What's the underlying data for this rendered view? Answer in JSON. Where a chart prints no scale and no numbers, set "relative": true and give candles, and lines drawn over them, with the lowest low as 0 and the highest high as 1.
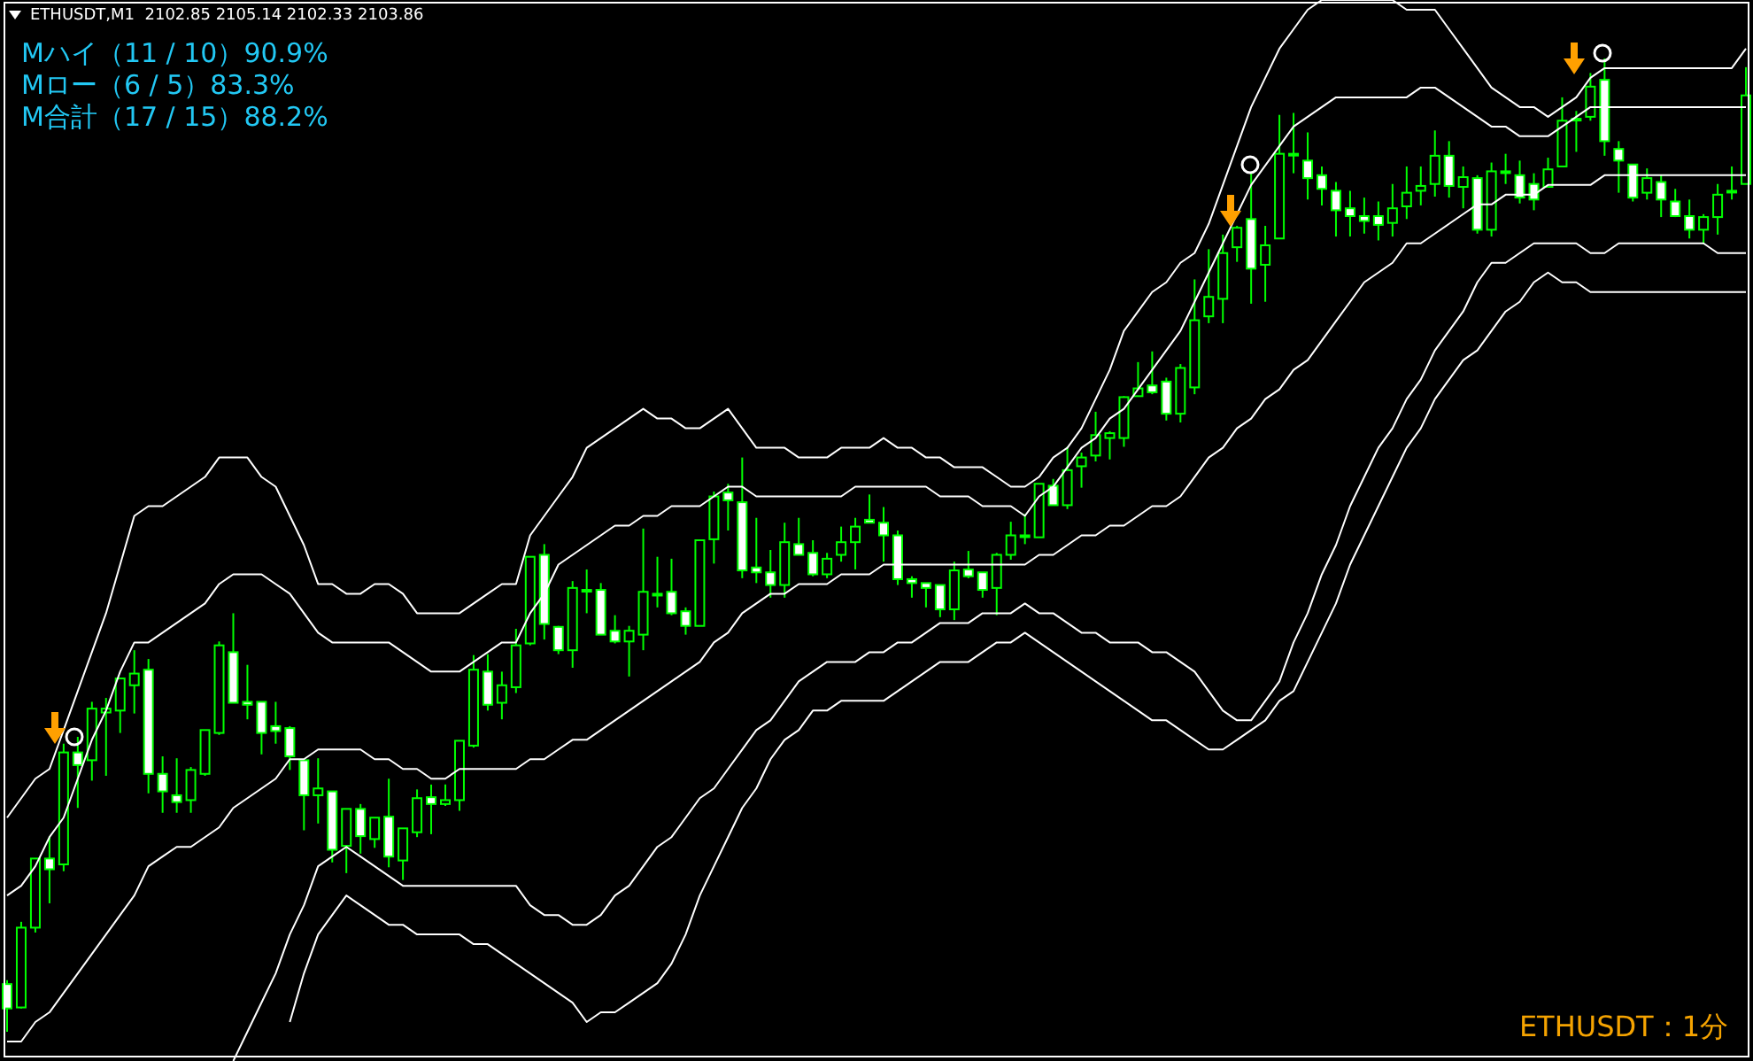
{
  "chart_data": {
    "type": "candlestick",
    "title": "ETHUSDT,M1  2102.85 2105.14 2102.33 2103.86",
    "relative": true,
    "tick_labels": false,
    "color": "#00ff00",
    "annotations": [
      "Mハイ（11 / 10）90.9%",
      "Mロー（6 / 5）83.3%",
      "M合計（17 / 15）88.2%",
      "ETHUSDT：1分"
    ],
    "categories": [
      null,
      null,
      null,
      null,
      null,
      null,
      null,
      null,
      null,
      null,
      null,
      null,
      null,
      null,
      null,
      null,
      null,
      null,
      null,
      null,
      null,
      null,
      null,
      null,
      null,
      null,
      null,
      null,
      null,
      null,
      null,
      null,
      null,
      null,
      null,
      null,
      null,
      null,
      null,
      null,
      null,
      null,
      null,
      null,
      null,
      null,
      null,
      null,
      null,
      null,
      null,
      null,
      null,
      null,
      null,
      null,
      null,
      null,
      null,
      null,
      null,
      null,
      null,
      null,
      null,
      null,
      null,
      null,
      null,
      null,
      null,
      null,
      null,
      null,
      null,
      null,
      null,
      null,
      null,
      null,
      null,
      null,
      null,
      null,
      null,
      null,
      null,
      null,
      null,
      null,
      null,
      null,
      null,
      null,
      null,
      null,
      null,
      null,
      null,
      null,
      null,
      null,
      null,
      null,
      null,
      null,
      null,
      null,
      null,
      null,
      null,
      null,
      null,
      null,
      null,
      null,
      null,
      null,
      null,
      null,
      null,
      null,
      null,
      null
    ],
    "ohlc": [
      [
        0.049,
        0.053,
        0,
        0.024
      ],
      [
        0.025,
        0.113,
        0.024,
        0.107
      ],
      [
        0.107,
        0.178,
        0.102,
        0.178
      ],
      [
        0.178,
        0.201,
        0.132,
        0.167
      ],
      [
        0.172,
        0.296,
        0.165,
        0.287
      ],
      [
        0.287,
        0.303,
        0.23,
        0.274
      ],
      [
        0.279,
        0.339,
        0.258,
        0.332
      ],
      [
        0.328,
        0.343,
        0.263,
        0.332
      ],
      [
        0.33,
        0.363,
        0.307,
        0.363
      ],
      [
        0.356,
        0.392,
        0.327,
        0.368
      ],
      [
        0.372,
        0.383,
        0.245,
        0.265
      ],
      [
        0.265,
        0.283,
        0.225,
        0.247
      ],
      [
        0.243,
        0.281,
        0.225,
        0.236
      ],
      [
        0.238,
        0.272,
        0.225,
        0.269
      ],
      [
        0.265,
        0.31,
        0.263,
        0.31
      ],
      [
        0.307,
        0.401,
        0.305,
        0.397
      ],
      [
        0.39,
        0.43,
        0.338,
        0.338
      ],
      [
        0.339,
        0.377,
        0.321,
        0.336
      ],
      [
        0.339,
        0.339,
        0.285,
        0.307
      ],
      [
        0.314,
        0.339,
        0.296,
        0.309
      ],
      [
        0.312,
        0.314,
        0.269,
        0.283
      ],
      [
        0.279,
        0.279,
        0.207,
        0.243
      ],
      [
        0.243,
        0.281,
        0.214,
        0.25
      ],
      [
        0.247,
        0.247,
        0.174,
        0.187
      ],
      [
        0.191,
        0.229,
        0.163,
        0.229
      ],
      [
        0.229,
        0.234,
        0.183,
        0.201
      ],
      [
        0.198,
        0.22,
        0.189,
        0.22
      ],
      [
        0.221,
        0.26,
        0.169,
        0.18
      ],
      [
        0.176,
        0.209,
        0.156,
        0.209
      ],
      [
        0.205,
        0.249,
        0.2,
        0.24
      ],
      [
        0.241,
        0.254,
        0.203,
        0.234
      ],
      [
        0.234,
        0.254,
        0.232,
        0.238
      ],
      [
        0.238,
        0.299,
        0.227,
        0.299
      ],
      [
        0.294,
        0.387,
        0.292,
        0.372
      ],
      [
        0.37,
        0.388,
        0.33,
        0.336
      ],
      [
        0.338,
        0.37,
        0.321,
        0.356
      ],
      [
        0.354,
        0.414,
        0.348,
        0.397
      ],
      [
        0.399,
        0.488,
        0.397,
        0.488
      ],
      [
        0.49,
        0.501,
        0.403,
        0.419
      ],
      [
        0.416,
        0.417,
        0.388,
        0.392
      ],
      [
        0.392,
        0.463,
        0.374,
        0.456
      ],
      [
        0.454,
        0.475,
        0.43,
        0.454
      ],
      [
        0.454,
        0.461,
        0.408,
        0.408
      ],
      [
        0.412,
        0.428,
        0.399,
        0.401
      ],
      [
        0.401,
        0.417,
        0.365,
        0.412
      ],
      [
        0.408,
        0.517,
        0.392,
        0.452
      ],
      [
        0.45,
        0.488,
        0.436,
        0.45
      ],
      [
        0.452,
        0.486,
        0.428,
        0.43
      ],
      [
        0.432,
        0.436,
        0.408,
        0.417
      ],
      [
        0.417,
        0.505,
        0.417,
        0.505
      ],
      [
        0.506,
        0.555,
        0.481,
        0.55
      ],
      [
        0.554,
        0.563,
        0.515,
        0.546
      ],
      [
        0.544,
        0.59,
        0.466,
        0.474
      ],
      [
        0.477,
        0.528,
        0.461,
        0.472
      ],
      [
        0.472,
        0.495,
        0.446,
        0.459
      ],
      [
        0.459,
        0.523,
        0.446,
        0.503
      ],
      [
        0.501,
        0.528,
        0.49,
        0.49
      ],
      [
        0.492,
        0.505,
        0.468,
        0.47
      ],
      [
        0.47,
        0.492,
        0.466,
        0.486
      ],
      [
        0.49,
        0.519,
        0.483,
        0.503
      ],
      [
        0.503,
        0.528,
        0.475,
        0.519
      ],
      [
        0.526,
        0.552,
        0.523,
        0.523
      ],
      [
        0.523,
        0.539,
        0.483,
        0.51
      ],
      [
        0.51,
        0.515,
        0.459,
        0.465
      ],
      [
        0.465,
        0.468,
        0.446,
        0.461
      ],
      [
        0.461,
        0.461,
        0.436,
        0.456
      ],
      [
        0.459,
        0.459,
        0.426,
        0.434
      ],
      [
        0.434,
        0.483,
        0.423,
        0.474
      ],
      [
        0.475,
        0.494,
        0.466,
        0.468
      ],
      [
        0.472,
        0.472,
        0.446,
        0.454
      ],
      [
        0.456,
        0.492,
        0.428,
        0.49
      ],
      [
        0.49,
        0.524,
        0.485,
        0.51
      ],
      [
        0.51,
        0.532,
        0.501,
        0.51
      ],
      [
        0.508,
        0.563,
        0.508,
        0.563
      ],
      [
        0.561,
        0.568,
        0.541,
        0.541
      ],
      [
        0.541,
        0.601,
        0.537,
        0.577
      ],
      [
        0.581,
        0.595,
        0.559,
        0.59
      ],
      [
        0.592,
        0.637,
        0.586,
        0.613
      ],
      [
        0.61,
        0.617,
        0.588,
        0.615
      ],
      [
        0.61,
        0.653,
        0.601,
        0.652
      ],
      [
        0.653,
        0.688,
        0.653,
        0.661
      ],
      [
        0.664,
        0.699,
        0.655,
        0.657
      ],
      [
        0.668,
        0.672,
        0.628,
        0.635
      ],
      [
        0.635,
        0.686,
        0.626,
        0.682
      ],
      [
        0.662,
        0.773,
        0.655,
        0.731
      ],
      [
        0.735,
        0.804,
        0.728,
        0.755
      ],
      [
        0.753,
        0.819,
        0.728,
        0.8
      ],
      [
        0.806,
        0.828,
        0.791,
        0.826
      ],
      [
        0.835,
        0.882,
        0.748,
        0.784
      ],
      [
        0.788,
        0.828,
        0.75,
        0.808
      ],
      [
        0.815,
        0.942,
        0.815,
        0.902
      ],
      [
        0.902,
        0.944,
        0.882,
        0.902
      ],
      [
        0.895,
        0.924,
        0.855,
        0.877
      ],
      [
        0.88,
        0.889,
        0.849,
        0.866
      ],
      [
        0.864,
        0.873,
        0.817,
        0.844
      ],
      [
        0.846,
        0.864,
        0.817,
        0.838
      ],
      [
        0.838,
        0.857,
        0.82,
        0.833
      ],
      [
        0.838,
        0.853,
        0.813,
        0.829
      ],
      [
        0.831,
        0.871,
        0.817,
        0.846
      ],
      [
        0.848,
        0.889,
        0.835,
        0.862
      ],
      [
        0.864,
        0.889,
        0.849,
        0.869
      ],
      [
        0.871,
        0.926,
        0.858,
        0.9
      ],
      [
        0.9,
        0.915,
        0.857,
        0.869
      ],
      [
        0.868,
        0.889,
        0.846,
        0.878
      ],
      [
        0.877,
        0.88,
        0.82,
        0.824
      ],
      [
        0.824,
        0.893,
        0.817,
        0.884
      ],
      [
        0.884,
        0.902,
        0.871,
        0.884
      ],
      [
        0.88,
        0.895,
        0.851,
        0.857
      ],
      [
        0.871,
        0.882,
        0.844,
        0.855
      ],
      [
        0.868,
        0.898,
        0.868,
        0.886
      ],
      [
        0.889,
        0.96,
        0.889,
        0.936
      ],
      [
        0.938,
        0.946,
        0.904,
        0.938
      ],
      [
        0.94,
        0.985,
        0.936,
        0.971
      ],
      [
        0.978,
        1,
        0.9,
        0.915
      ],
      [
        0.907,
        0.915,
        0.862,
        0.895
      ],
      [
        0.891,
        0.891,
        0.853,
        0.857
      ],
      [
        0.862,
        0.887,
        0.855,
        0.877
      ],
      [
        0.873,
        0.88,
        0.837,
        0.855
      ],
      [
        0.853,
        0.866,
        0.837,
        0.838
      ],
      [
        0.838,
        0.855,
        0.815,
        0.824
      ],
      [
        0.824,
        0.84,
        0.809,
        0.837
      ],
      [
        0.837,
        0.871,
        0.819,
        0.86
      ],
      [
        0.864,
        0.889,
        0.855,
        0.864
      ],
      [
        0.871,
        0.991,
        0.871,
        0.962
      ]
    ],
    "series": [
      {
        "type": "line",
        "color": "#ffffff",
        "values": [
          0.22,
          0.24,
          0.26,
          0.27,
          0.31,
          0.35,
          0.39,
          0.43,
          0.48,
          0.53,
          0.54,
          0.54,
          0.55,
          0.56,
          0.57,
          0.59,
          0.59,
          0.59,
          0.57,
          0.56,
          0.53,
          0.5,
          0.46,
          0.46,
          0.45,
          0.45,
          0.46,
          0.46,
          0.45,
          0.43,
          0.43,
          0.43,
          0.43,
          0.44,
          0.45,
          0.46,
          0.46,
          0.51,
          0.53,
          0.55,
          0.57,
          0.6,
          0.61,
          0.62,
          0.63,
          0.64,
          0.63,
          0.63,
          0.62,
          0.62,
          0.63,
          0.64,
          0.62,
          0.6,
          0.6,
          0.6,
          0.59,
          0.59,
          0.59,
          0.6,
          0.6,
          0.6,
          0.61,
          0.6,
          0.6,
          0.59,
          0.59,
          0.58,
          0.58,
          0.58,
          0.57,
          0.56,
          0.56,
          0.57,
          0.59,
          0.6,
          0.62,
          0.65,
          0.68,
          0.72,
          0.74,
          0.76,
          0.77,
          0.79,
          0.8,
          0.83,
          0.87,
          0.91,
          0.95,
          0.98,
          1.01,
          1.03,
          1.05,
          1.06,
          1.06,
          1.06,
          1.06,
          1.06,
          1.06,
          1.05,
          1.05,
          1.05,
          1.03,
          1.01,
          0.99,
          0.97,
          0.96,
          0.95,
          0.95,
          0.94,
          0.95,
          0.96,
          0.98,
          0.99,
          0.99,
          0.99,
          0.99,
          0.99,
          0.99,
          0.99,
          0.99,
          0.99,
          0.99,
          1.01
        ]
      },
      {
        "type": "line",
        "color": "#ffffff",
        "values": [
          0.14,
          0.15,
          0.17,
          0.2,
          0.22,
          0.26,
          0.3,
          0.33,
          0.37,
          0.4,
          0.4,
          0.41,
          0.42,
          0.43,
          0.44,
          0.46,
          0.47,
          0.47,
          0.47,
          0.46,
          0.45,
          0.43,
          0.41,
          0.4,
          0.4,
          0.4,
          0.4,
          0.4,
          0.39,
          0.38,
          0.37,
          0.37,
          0.37,
          0.38,
          0.39,
          0.4,
          0.4,
          0.43,
          0.45,
          0.48,
          0.49,
          0.5,
          0.51,
          0.52,
          0.52,
          0.53,
          0.53,
          0.54,
          0.54,
          0.54,
          0.55,
          0.56,
          0.56,
          0.55,
          0.55,
          0.55,
          0.55,
          0.55,
          0.55,
          0.55,
          0.56,
          0.56,
          0.56,
          0.56,
          0.56,
          0.56,
          0.55,
          0.55,
          0.55,
          0.54,
          0.54,
          0.54,
          0.53,
          0.55,
          0.56,
          0.58,
          0.6,
          0.61,
          0.63,
          0.64,
          0.66,
          0.68,
          0.7,
          0.72,
          0.75,
          0.78,
          0.81,
          0.84,
          0.87,
          0.89,
          0.91,
          0.93,
          0.94,
          0.95,
          0.96,
          0.96,
          0.96,
          0.96,
          0.96,
          0.96,
          0.97,
          0.97,
          0.96,
          0.95,
          0.94,
          0.93,
          0.93,
          0.92,
          0.92,
          0.92,
          0.93,
          0.94,
          0.95,
          0.95,
          0.95,
          0.95,
          0.95,
          0.95,
          0.95,
          0.95,
          0.95,
          0.95,
          0.95,
          0.95
        ]
      },
      {
        "type": "line",
        "color": "#ffffff",
        "values": [
          -0.01,
          -0.01,
          0.01,
          0.02,
          0.04,
          0.06,
          0.08,
          0.1,
          0.12,
          0.14,
          0.17,
          0.18,
          0.19,
          0.19,
          0.2,
          0.21,
          0.23,
          0.24,
          0.25,
          0.26,
          0.28,
          0.28,
          0.29,
          0.29,
          0.29,
          0.29,
          0.28,
          0.28,
          0.27,
          0.27,
          0.26,
          0.26,
          0.27,
          0.27,
          0.27,
          0.27,
          0.27,
          0.28,
          0.28,
          0.29,
          0.3,
          0.3,
          0.31,
          0.32,
          0.33,
          0.34,
          0.35,
          0.36,
          0.37,
          0.38,
          0.4,
          0.41,
          0.43,
          0.44,
          0.45,
          0.45,
          0.46,
          0.46,
          0.46,
          0.47,
          0.47,
          0.47,
          0.48,
          0.48,
          0.48,
          0.48,
          0.48,
          0.48,
          0.48,
          0.48,
          0.48,
          0.48,
          0.48,
          0.49,
          0.49,
          0.5,
          0.51,
          0.51,
          0.52,
          0.52,
          0.53,
          0.54,
          0.54,
          0.55,
          0.57,
          0.59,
          0.6,
          0.62,
          0.63,
          0.65,
          0.66,
          0.68,
          0.69,
          0.71,
          0.73,
          0.75,
          0.77,
          0.78,
          0.79,
          0.81,
          0.81,
          0.82,
          0.83,
          0.84,
          0.85,
          0.85,
          0.86,
          0.86,
          0.86,
          0.87,
          0.87,
          0.87,
          0.87,
          0.88,
          0.88,
          0.88,
          0.88,
          0.88,
          0.88,
          0.88,
          0.88,
          0.88,
          0.88,
          0.88
        ]
      },
      {
        "type": "line",
        "color": "#ffffff",
        "values": [
          null,
          null,
          null,
          null,
          null,
          null,
          null,
          null,
          null,
          null,
          null,
          null,
          null,
          null,
          null,
          null,
          -0.03,
          0.0,
          0.03,
          0.06,
          0.1,
          0.13,
          0.17,
          0.18,
          0.19,
          0.18,
          0.17,
          0.16,
          0.15,
          0.15,
          0.15,
          0.15,
          0.15,
          0.15,
          0.15,
          0.15,
          0.15,
          0.13,
          0.12,
          0.12,
          0.11,
          0.11,
          0.12,
          0.14,
          0.15,
          0.17,
          0.19,
          0.2,
          0.22,
          0.24,
          0.25,
          0.27,
          0.29,
          0.31,
          0.32,
          0.34,
          0.36,
          0.37,
          0.38,
          0.38,
          0.38,
          0.39,
          0.39,
          0.4,
          0.4,
          0.41,
          0.42,
          0.42,
          0.42,
          0.43,
          0.43,
          0.43,
          0.44,
          0.43,
          0.43,
          0.42,
          0.41,
          0.41,
          0.4,
          0.4,
          0.4,
          0.39,
          0.39,
          0.38,
          0.37,
          0.35,
          0.33,
          0.32,
          0.32,
          0.34,
          0.36,
          0.4,
          0.43,
          0.47,
          0.5,
          0.54,
          0.57,
          0.6,
          0.62,
          0.65,
          0.67,
          0.7,
          0.72,
          0.74,
          0.77,
          0.79,
          0.79,
          0.8,
          0.81,
          0.81,
          0.81,
          0.81,
          0.8,
          0.8,
          0.81,
          0.81,
          0.81,
          0.81,
          0.81,
          0.81,
          0.81,
          0.8,
          0.8,
          0.8
        ]
      },
      {
        "type": "line",
        "color": "#ffffff",
        "values": [
          null,
          null,
          null,
          null,
          null,
          null,
          null,
          null,
          null,
          null,
          null,
          null,
          null,
          null,
          null,
          null,
          null,
          null,
          null,
          null,
          0.01,
          0.06,
          0.1,
          0.12,
          0.14,
          0.13,
          0.12,
          0.11,
          0.11,
          0.1,
          0.1,
          0.1,
          0.1,
          0.09,
          0.09,
          0.08,
          0.07,
          0.06,
          0.05,
          0.04,
          0.03,
          0.01,
          0.02,
          0.02,
          0.03,
          0.04,
          0.05,
          0.07,
          0.1,
          0.14,
          0.17,
          0.2,
          0.23,
          0.25,
          0.28,
          0.3,
          0.31,
          0.33,
          0.33,
          0.34,
          0.34,
          0.34,
          0.34,
          0.35,
          0.36,
          0.37,
          0.38,
          0.38,
          0.38,
          0.39,
          0.4,
          0.4,
          0.41,
          0.4,
          0.39,
          0.38,
          0.37,
          0.36,
          0.35,
          0.34,
          0.33,
          0.32,
          0.32,
          0.31,
          0.3,
          0.29,
          0.29,
          0.3,
          0.31,
          0.32,
          0.34,
          0.35,
          0.38,
          0.41,
          0.44,
          0.48,
          0.51,
          0.54,
          0.57,
          0.6,
          0.62,
          0.65,
          0.67,
          0.69,
          0.7,
          0.72,
          0.74,
          0.75,
          0.77,
          0.78,
          0.77,
          0.77,
          0.76,
          0.76,
          0.76,
          0.76,
          0.76,
          0.76,
          0.76,
          0.76,
          0.76,
          0.76,
          0.76,
          0.76
        ]
      }
    ]
  }
}
